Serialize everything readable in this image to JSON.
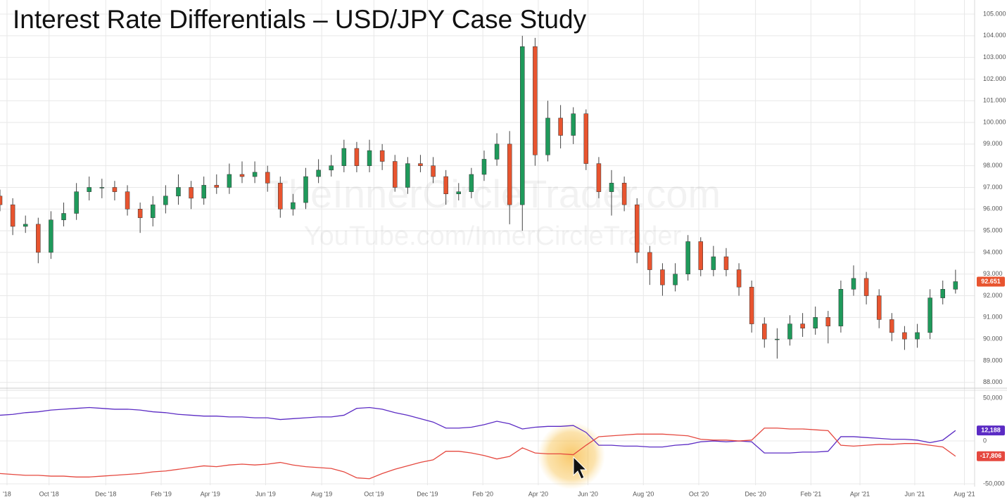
{
  "chart_data": [
    {
      "type": "candlestick",
      "title": "Interest Rate Differentials – USD/JPY Case Study",
      "watermarks": [
        "TheInnerCircleTrader.com",
        "YouTube.com/InnerCircleTrader"
      ],
      "up_color": "#1f9a5b",
      "down_color": "#e8542f",
      "grid": true,
      "xlim": [
        0,
        153
      ],
      "ylim": [
        87.7,
        105.65
      ],
      "yticks": [
        {
          "value": 88,
          "label": "88.000"
        },
        {
          "value": 89,
          "label": "89.000"
        },
        {
          "value": 90,
          "label": "90.000"
        },
        {
          "value": 91,
          "label": "91.000"
        },
        {
          "value": 92,
          "label": "92.000"
        },
        {
          "value": 93,
          "label": "93.000"
        },
        {
          "value": 94,
          "label": "94.000"
        },
        {
          "value": 95,
          "label": "95.000"
        },
        {
          "value": 96,
          "label": "96.000"
        },
        {
          "value": 97,
          "label": "97.000"
        },
        {
          "value": 98,
          "label": "98.000"
        },
        {
          "value": 99,
          "label": "99.000"
        },
        {
          "value": 100,
          "label": "100.000"
        },
        {
          "value": 101,
          "label": "101.000"
        },
        {
          "value": 102,
          "label": "102.000"
        },
        {
          "value": 103,
          "label": "103.000"
        },
        {
          "value": 104,
          "label": "104.000"
        },
        {
          "value": 105,
          "label": "105.000"
        }
      ],
      "last_label": "92.651",
      "x": [
        0,
        2,
        4,
        6,
        8,
        10,
        12,
        14,
        16,
        18,
        20,
        22,
        24,
        26,
        28,
        30,
        32,
        34,
        36,
        38,
        40,
        42,
        44,
        46,
        48,
        50,
        52,
        54,
        56,
        58,
        60,
        62,
        64,
        66,
        68,
        70,
        72,
        74,
        76,
        78,
        80,
        82,
        84,
        86,
        88,
        90,
        92,
        94,
        96,
        98,
        100,
        102,
        104,
        106,
        108,
        110,
        112,
        114,
        116,
        118,
        120,
        122,
        124,
        126,
        128,
        130,
        132,
        134,
        136,
        138,
        140,
        142,
        144,
        146,
        148,
        150
      ],
      "candles": [
        [
          96.6,
          96.9,
          95.9,
          96.2
        ],
        [
          96.2,
          96.5,
          94.8,
          95.2
        ],
        [
          95.2,
          95.7,
          94.9,
          95.3
        ],
        [
          95.3,
          95.6,
          93.5,
          94.0
        ],
        [
          94.0,
          95.9,
          93.7,
          95.5
        ],
        [
          95.5,
          96.3,
          95.2,
          95.8
        ],
        [
          95.8,
          97.2,
          95.5,
          96.8
        ],
        [
          96.8,
          97.5,
          96.4,
          97.0
        ],
        [
          97.0,
          97.4,
          96.5,
          97.0
        ],
        [
          97.0,
          97.3,
          96.4,
          96.8
        ],
        [
          96.8,
          97.1,
          95.7,
          96.0
        ],
        [
          96.0,
          96.3,
          94.9,
          95.6
        ],
        [
          95.6,
          96.6,
          95.2,
          96.2
        ],
        [
          96.2,
          97.1,
          95.8,
          96.6
        ],
        [
          96.6,
          97.6,
          96.2,
          97.0
        ],
        [
          97.0,
          97.3,
          96.0,
          96.5
        ],
        [
          96.5,
          97.5,
          96.2,
          97.1
        ],
        [
          97.1,
          97.6,
          96.7,
          97.0
        ],
        [
          97.0,
          98.1,
          96.7,
          97.6
        ],
        [
          97.6,
          98.2,
          97.2,
          97.5
        ],
        [
          97.5,
          98.2,
          97.2,
          97.7
        ],
        [
          97.7,
          98.0,
          96.8,
          97.2
        ],
        [
          97.2,
          97.5,
          95.6,
          96.0
        ],
        [
          96.0,
          96.7,
          95.7,
          96.3
        ],
        [
          96.3,
          97.9,
          96.0,
          97.5
        ],
        [
          97.5,
          98.3,
          97.2,
          97.8
        ],
        [
          97.8,
          98.5,
          97.5,
          98.0
        ],
        [
          98.0,
          99.2,
          97.7,
          98.8
        ],
        [
          98.8,
          99.1,
          97.7,
          98.0
        ],
        [
          98.0,
          99.2,
          97.7,
          98.7
        ],
        [
          98.7,
          99.0,
          97.8,
          98.2
        ],
        [
          98.2,
          98.5,
          96.8,
          97.0
        ],
        [
          97.0,
          98.4,
          96.7,
          98.1
        ],
        [
          98.1,
          98.5,
          97.7,
          98.0
        ],
        [
          98.0,
          98.4,
          97.2,
          97.5
        ],
        [
          97.5,
          97.8,
          96.2,
          96.7
        ],
        [
          96.7,
          97.2,
          96.4,
          96.8
        ],
        [
          96.8,
          97.9,
          96.5,
          97.6
        ],
        [
          97.6,
          98.7,
          97.3,
          98.3
        ],
        [
          98.3,
          99.5,
          98.0,
          99.0
        ],
        [
          99.0,
          99.6,
          95.3,
          96.2
        ],
        [
          96.2,
          104.0,
          95.0,
          103.5
        ],
        [
          103.5,
          103.9,
          98.0,
          98.5
        ],
        [
          98.5,
          101.0,
          98.2,
          100.2
        ],
        [
          100.2,
          100.8,
          98.8,
          99.4
        ],
        [
          99.4,
          100.7,
          99.0,
          100.4
        ],
        [
          100.4,
          100.6,
          97.8,
          98.1
        ],
        [
          98.1,
          98.4,
          96.5,
          96.8
        ],
        [
          96.8,
          97.8,
          95.7,
          97.2
        ],
        [
          97.2,
          97.5,
          95.9,
          96.2
        ],
        [
          96.2,
          96.5,
          93.5,
          94.0
        ],
        [
          94.0,
          94.3,
          92.5,
          93.2
        ],
        [
          93.2,
          93.5,
          92.0,
          92.5
        ],
        [
          92.5,
          93.5,
          92.2,
          93.0
        ],
        [
          93.0,
          94.8,
          92.7,
          94.5
        ],
        [
          94.5,
          94.7,
          92.9,
          93.2
        ],
        [
          93.2,
          94.3,
          92.9,
          93.8
        ],
        [
          93.8,
          94.2,
          92.9,
          93.2
        ],
        [
          93.2,
          93.5,
          92.0,
          92.4
        ],
        [
          92.4,
          92.7,
          90.3,
          90.7
        ],
        [
          90.7,
          91.0,
          89.6,
          90.0
        ],
        [
          90.0,
          90.5,
          89.1,
          90.0
        ],
        [
          90.0,
          91.1,
          89.7,
          90.7
        ],
        [
          90.7,
          91.2,
          90.1,
          90.5
        ],
        [
          90.5,
          91.5,
          90.2,
          91.0
        ],
        [
          91.0,
          91.3,
          89.8,
          90.6
        ],
        [
          90.6,
          92.7,
          90.3,
          92.3
        ],
        [
          92.3,
          93.4,
          92.0,
          92.8
        ],
        [
          92.8,
          93.1,
          91.6,
          92.0
        ],
        [
          92.0,
          92.3,
          90.5,
          90.9
        ],
        [
          90.9,
          91.2,
          89.9,
          90.3
        ],
        [
          90.3,
          90.6,
          89.5,
          90.0
        ],
        [
          90.0,
          90.7,
          89.6,
          90.3
        ],
        [
          90.3,
          92.3,
          90.0,
          91.9
        ],
        [
          91.9,
          92.7,
          91.6,
          92.3
        ],
        [
          92.3,
          93.2,
          92.1,
          92.651
        ]
      ]
    },
    {
      "type": "line",
      "xlim": [
        0,
        153
      ],
      "ylim": [
        -51600,
        60700
      ],
      "yticks": [
        {
          "value": 50000,
          "label": "50,000"
        },
        0,
        {
          "value": -50000,
          "label": "-50,000"
        }
      ],
      "xticks": [
        {
          "value": 1.1,
          "label": "'18"
        },
        {
          "value": 7.7,
          "label": "Oct '18"
        },
        {
          "value": 16.6,
          "label": "Dec '18"
        },
        {
          "value": 25.3,
          "label": "Feb '19"
        },
        {
          "value": 33.0,
          "label": "Apr '19"
        },
        {
          "value": 41.7,
          "label": "Jun '19"
        },
        {
          "value": 50.5,
          "label": "Aug '19"
        },
        {
          "value": 58.7,
          "label": "Oct '19"
        },
        {
          "value": 67.1,
          "label": "Dec '19"
        },
        {
          "value": 75.8,
          "label": "Feb '20"
        },
        {
          "value": 84.5,
          "label": "Apr '20"
        },
        {
          "value": 92.3,
          "label": "Jun '20"
        },
        {
          "value": 101.0,
          "label": "Aug '20"
        },
        {
          "value": 109.7,
          "label": "Oct '20"
        },
        {
          "value": 118.6,
          "label": "Dec '20"
        },
        {
          "value": 127.3,
          "label": "Feb '21"
        },
        {
          "value": 135.0,
          "label": "Apr '21"
        },
        {
          "value": 143.6,
          "label": "Jun '21"
        },
        {
          "value": 151.4,
          "label": "Aug '21"
        }
      ],
      "x": [
        0,
        2,
        4,
        6,
        8,
        10,
        12,
        14,
        16,
        18,
        20,
        22,
        24,
        26,
        28,
        30,
        32,
        34,
        36,
        38,
        40,
        42,
        44,
        46,
        48,
        50,
        52,
        54,
        56,
        58,
        60,
        62,
        64,
        66,
        68,
        70,
        72,
        74,
        76,
        78,
        80,
        82,
        84,
        86,
        88,
        90,
        92,
        94,
        96,
        98,
        100,
        102,
        104,
        106,
        108,
        110,
        112,
        114,
        116,
        118,
        120,
        122,
        124,
        126,
        128,
        130,
        132,
        134,
        136,
        138,
        140,
        142,
        144,
        146,
        148,
        150
      ],
      "series": [
        {
          "color": "#5b2bc4",
          "last_label": "12,188",
          "values": [
            30000,
            31000,
            33000,
            34000,
            36000,
            37000,
            38000,
            39000,
            38000,
            37000,
            37000,
            36000,
            34000,
            33000,
            31000,
            30000,
            29000,
            29000,
            28000,
            28000,
            27000,
            27000,
            25000,
            26000,
            27000,
            28000,
            28000,
            30000,
            38000,
            39000,
            37000,
            33000,
            30000,
            26000,
            22000,
            15000,
            15000,
            16000,
            19000,
            23000,
            20000,
            14000,
            16000,
            17000,
            17000,
            18000,
            10000,
            -5000,
            -5000,
            -6000,
            -6000,
            -7000,
            -7000,
            -5000,
            -4000,
            -1000,
            0,
            -1000,
            0,
            -1000,
            -14000,
            -14000,
            -14000,
            -13000,
            -13000,
            -12000,
            5000,
            5000,
            4000,
            3000,
            2000,
            2000,
            1000,
            -2000,
            1000,
            12188
          ]
        },
        {
          "color": "#e5483f",
          "last_label": "-17,806",
          "values": [
            -38000,
            -39000,
            -40000,
            -40000,
            -41000,
            -41000,
            -42000,
            -42000,
            -41000,
            -40000,
            -39000,
            -38000,
            -36000,
            -35000,
            -33000,
            -31000,
            -29000,
            -30000,
            -28000,
            -27000,
            -28000,
            -27000,
            -25000,
            -28000,
            -30000,
            -31000,
            -32000,
            -36000,
            -43000,
            -44000,
            -38000,
            -33000,
            -29000,
            -25000,
            -22000,
            -12000,
            -12000,
            -14000,
            -17000,
            -21000,
            -18000,
            -8000,
            -14000,
            -15000,
            -15000,
            -16000,
            -5000,
            5000,
            6000,
            7000,
            8000,
            8000,
            8000,
            7000,
            6000,
            2000,
            1000,
            1000,
            0,
            1000,
            15000,
            15000,
            14000,
            14000,
            13000,
            12000,
            -5000,
            -6000,
            -5000,
            -4000,
            -4000,
            -3000,
            -3000,
            -5000,
            -7000,
            -17806
          ]
        }
      ]
    }
  ]
}
